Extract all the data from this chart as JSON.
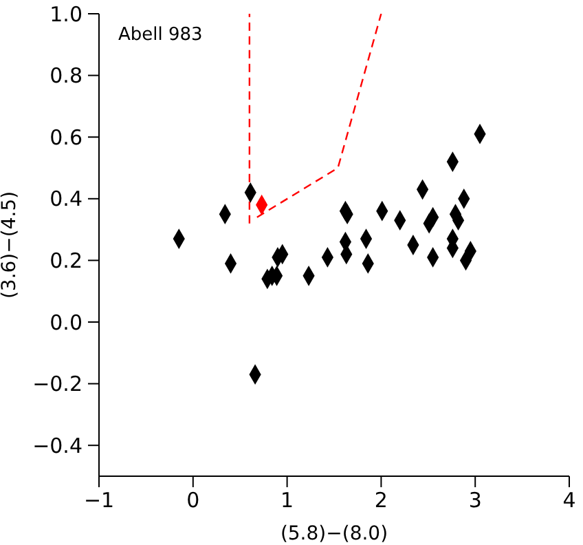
{
  "chart_data": {
    "type": "scatter",
    "xlabel": "(5.8)−(8.0)",
    "ylabel": "(3.6)−(4.5)",
    "annotations": [
      "Abell 983"
    ],
    "xlim": [
      -1,
      4
    ],
    "xticks": [
      {
        "value": -1,
        "label": "−1"
      },
      0,
      1,
      2,
      3,
      4
    ],
    "ylim": [
      -0.5,
      1.0
    ],
    "yticks": [
      {
        "value": -0.4,
        "label": "−0.4"
      },
      {
        "value": -0.2,
        "label": "−0.2"
      },
      {
        "value": 0,
        "label": "0.0"
      },
      0.2,
      0.4,
      0.6,
      0.8,
      {
        "value": 1,
        "label": "1.0"
      }
    ],
    "marker": "diamond",
    "series": [
      {
        "color": "#000000",
        "x": [
          -0.15,
          0.34,
          0.4,
          0.61,
          0.66,
          0.79,
          0.84,
          0.89,
          0.9,
          0.95,
          1.23,
          1.43,
          1.62,
          1.63,
          1.62,
          1.64,
          1.84,
          1.86,
          2.01,
          2.2,
          2.34,
          2.44,
          2.51,
          2.55,
          2.55,
          2.76,
          2.76,
          2.76,
          2.79,
          2.82,
          2.88,
          2.9,
          2.95,
          3.05
        ],
        "values": [
          0.27,
          0.35,
          0.19,
          0.42,
          -0.17,
          0.14,
          0.15,
          0.15,
          0.21,
          0.22,
          0.15,
          0.21,
          0.26,
          0.22,
          0.36,
          0.35,
          0.27,
          0.19,
          0.36,
          0.33,
          0.25,
          0.43,
          0.32,
          0.34,
          0.21,
          0.52,
          0.27,
          0.24,
          0.35,
          0.33,
          0.4,
          0.2,
          0.23,
          0.61
        ]
      },
      {
        "color": "#ff0000",
        "x": [
          0.73
        ],
        "values": [
          0.38
        ]
      },
      {
        "type": "line",
        "color": "#ff0000",
        "line_style": "dashed",
        "marker": "none",
        "x": [
          0.6,
          0.6
        ],
        "values": [
          0.32,
          1.0
        ]
      },
      {
        "type": "line",
        "color": "#ff0000",
        "line_style": "dashed",
        "marker": "none",
        "x": [
          0.68,
          1.54,
          2.0
        ],
        "values": [
          0.34,
          0.5,
          1.0
        ]
      }
    ]
  }
}
